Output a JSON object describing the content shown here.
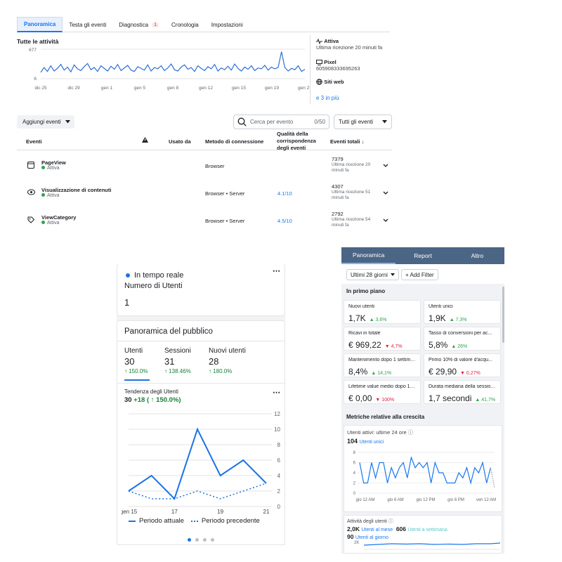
{
  "fb": {
    "tabs": [
      {
        "label": "Panoramica"
      },
      {
        "label": "Testa gli eventi"
      },
      {
        "label": "Diagnostica",
        "badge": "1"
      },
      {
        "label": "Cronologia"
      },
      {
        "label": "Impostazioni"
      }
    ],
    "chart_title": "Tutte le attività",
    "sidebar": {
      "status_label": "Attiva",
      "status_sub": "Ultima ricezione 20 minuti fa",
      "pixel_label": "Pixel",
      "pixel_id": "605908333695263",
      "sites_label": "Siti web",
      "more_link": "e 3 in più"
    },
    "add_events": "Aggiungi eventi",
    "search_placeholder": "Cerca per evento",
    "search_count": "0/50",
    "filter_all": "Tutti gli eventi",
    "table_headers": {
      "events": "Eventi",
      "used_by": "Usato da",
      "method": "Metodo di connessione",
      "quality": "Qualità della corrispondenza degli eventi",
      "total": "Eventi totali ↓"
    },
    "rows": [
      {
        "name": "PageView",
        "status": "Attiva",
        "method": "Browser",
        "quality": "",
        "total": "7379",
        "received": "Ultima ricezione 20 minuti fa"
      },
      {
        "name": "Visualizzazione di contenuti",
        "status": "Attiva",
        "method": "Browser • Server",
        "quality": "4.1/10",
        "total": "4307",
        "received": "Ultima ricezione 51 minuti fa"
      },
      {
        "name": "ViewCategory",
        "status": "Attiva",
        "method": "Browser • Server",
        "quality": "4.5/10",
        "total": "2792",
        "received": "Ultima ricezione 54 minuti fa"
      }
    ]
  },
  "ga": {
    "realtime_title": "In tempo reale",
    "realtime_metric": "Numero di Utenti",
    "realtime_value": "1",
    "overview_title": "Panoramica del pubblico",
    "metrics": [
      {
        "label": "Utenti",
        "value": "30",
        "change": "↑ 150.0%"
      },
      {
        "label": "Sessioni",
        "value": "31",
        "change": "↑ 138.46%"
      },
      {
        "label": "Nuovi utenti",
        "value": "28",
        "change": "↑ 180.0%"
      }
    ],
    "trend_title": "Tendenza degli Utenti",
    "trend_value": "30",
    "trend_change": "+18 ( ↑ 150.0%)",
    "legend_current": "Periodo attuale",
    "legend_previous": "Periodo precedente",
    "colors": {
      "accent": "#1a73e8",
      "green": "#188038"
    }
  },
  "fba": {
    "tabs": [
      {
        "label": "Panoramica"
      },
      {
        "label": "Report"
      },
      {
        "label": "Altro"
      }
    ],
    "date_range": "Ultimi 28 giorni",
    "add_filter": "+ Add Filter",
    "highlight_title": "In primo piano",
    "cards": [
      {
        "title": "Nuovi utenti",
        "value": "1,7K",
        "delta": "3,6%",
        "dir": "up"
      },
      {
        "title": "Utenti unici",
        "value": "1,9K",
        "delta": "7,3%",
        "dir": "up"
      },
      {
        "title": "Ricavi in totale",
        "value": "€ 969,22",
        "delta": "4,7%",
        "dir": "down"
      },
      {
        "title": "Tasso di conversioni per ac...",
        "value": "5,8%",
        "delta": "26%",
        "dir": "up"
      },
      {
        "title": "Mantenimento dopo 1 settiman...",
        "value": "8,4%",
        "delta": "14,1%",
        "dir": "up"
      },
      {
        "title": "Primo 10% di valore d'acqu...",
        "value": "€ 29,90",
        "delta": "0,27%",
        "dir": "down"
      },
      {
        "title": "Lifetime value medio dopo 1 set...",
        "value": "€ 0,00",
        "delta": "100%",
        "dir": "down"
      },
      {
        "title": "Durata mediana della sessione",
        "value": "1,7 secondi",
        "delta": "41,7%",
        "dir": "up"
      }
    ],
    "growth_title": "Metriche relative alla crescita",
    "active_title": "Utenti attivi: ultime 24 ore",
    "active_value": "104",
    "active_unit": "Utenti unici",
    "activity_title": "Attività degli utenti",
    "monthly_value": "2,0K",
    "monthly_label": "Utenti al mese",
    "weekly_value": "606",
    "weekly_label": "Utenti a settimana",
    "daily_value": "90",
    "daily_label": "Utenti al giorno",
    "mini_tick": "2K"
  },
  "chart_data": [
    {
      "type": "line",
      "title": "Tutte le attività",
      "ylim": [
        6,
        677
      ],
      "y_ticks": [
        "677",
        "6"
      ],
      "x_ticks": [
        "dic 25",
        "dic 29",
        "gen 1",
        "gen 5",
        "gen 8",
        "gen 12",
        "gen 15",
        "gen 19",
        "gen 22"
      ],
      "series": [
        {
          "values": [
            150,
            260,
            170,
            300,
            180,
            240,
            330,
            200,
            270,
            160,
            320,
            230,
            190,
            280,
            350,
            210,
            260,
            170,
            300,
            240,
            180,
            290,
            220,
            330,
            190,
            250,
            310,
            200,
            170,
            280,
            240,
            200,
            320,
            180,
            260,
            230,
            300,
            190,
            250,
            340,
            210,
            180,
            270,
            320,
            220,
            260,
            170,
            300,
            240,
            190,
            280,
            230,
            330,
            180,
            250,
            210,
            290,
            200,
            340,
            240,
            180,
            270,
            220,
            300,
            190,
            250,
            230,
            310,
            200,
            270,
            230,
            260,
            620,
            260,
            180,
            240,
            210,
            300,
            170,
            220
          ]
        }
      ]
    },
    {
      "type": "line",
      "title": "Tendenza degli Utenti",
      "ylim": [
        0,
        12
      ],
      "y_ticks": [
        "0",
        "2",
        "4",
        "6",
        "8",
        "10",
        "12"
      ],
      "x_ticks": [
        "gen 15",
        "17",
        "19",
        "21"
      ],
      "x": [
        15,
        16,
        17,
        18,
        19,
        20,
        21
      ],
      "series": [
        {
          "name": "Periodo attuale",
          "values": [
            2,
            4,
            1,
            10,
            4,
            6,
            3
          ]
        },
        {
          "name": "Periodo precedente",
          "values": [
            2,
            1,
            1,
            2,
            1,
            2,
            3
          ]
        }
      ]
    },
    {
      "type": "line",
      "title": "Utenti attivi: ultime 24 ore",
      "ylim": [
        0,
        8
      ],
      "y_ticks": [
        "0",
        "2",
        "4",
        "6",
        "8"
      ],
      "x_ticks": [
        "gio 12 AM",
        "gio 6 AM",
        "gio 12 PM",
        "gio 6 PM",
        "ven 12 AM"
      ],
      "series": [
        {
          "values": [
            6,
            2,
            2,
            6,
            3,
            6,
            6,
            2,
            5,
            3,
            5,
            6,
            3,
            7,
            5,
            6,
            5,
            6,
            2,
            6,
            4,
            4,
            2,
            2,
            2,
            4,
            3,
            5,
            2,
            5,
            4,
            6,
            2,
            5,
            1
          ]
        }
      ]
    }
  ]
}
